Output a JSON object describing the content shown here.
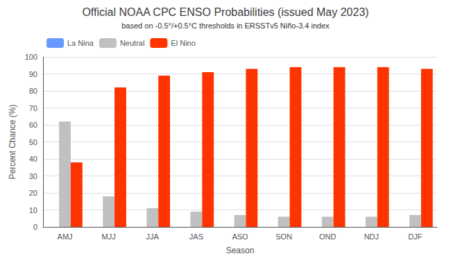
{
  "chart_data": {
    "type": "bar",
    "title": "Official NOAA CPC ENSO Probabilities (issued May 2023)",
    "subtitle": "based on -0.5°/+0.5°C thresholds in ERSSTv5 Niño-3.4 index",
    "xlabel": "Season",
    "ylabel": "Percent Chance (%)",
    "categories": [
      "AMJ",
      "MJJ",
      "JJA",
      "JAS",
      "ASO",
      "SON",
      "OND",
      "NDJ",
      "DJF"
    ],
    "series": [
      {
        "name": "La Nina",
        "color": "#6699ff",
        "values": [
          0,
          0,
          0,
          0,
          0,
          0,
          0,
          0,
          0
        ]
      },
      {
        "name": "Neutral",
        "color": "#c0c0c0",
        "values": [
          62,
          18,
          11,
          9,
          7,
          6,
          6,
          6,
          7
        ]
      },
      {
        "name": "El Nino",
        "color": "#ff3300",
        "values": [
          38,
          82,
          89,
          91,
          93,
          94,
          94,
          94,
          93
        ]
      }
    ],
    "ylim": [
      0,
      100
    ],
    "yticks": [
      0,
      10,
      20,
      30,
      40,
      50,
      60,
      70,
      80,
      90,
      100
    ],
    "grid": true,
    "legend": "upper left"
  }
}
